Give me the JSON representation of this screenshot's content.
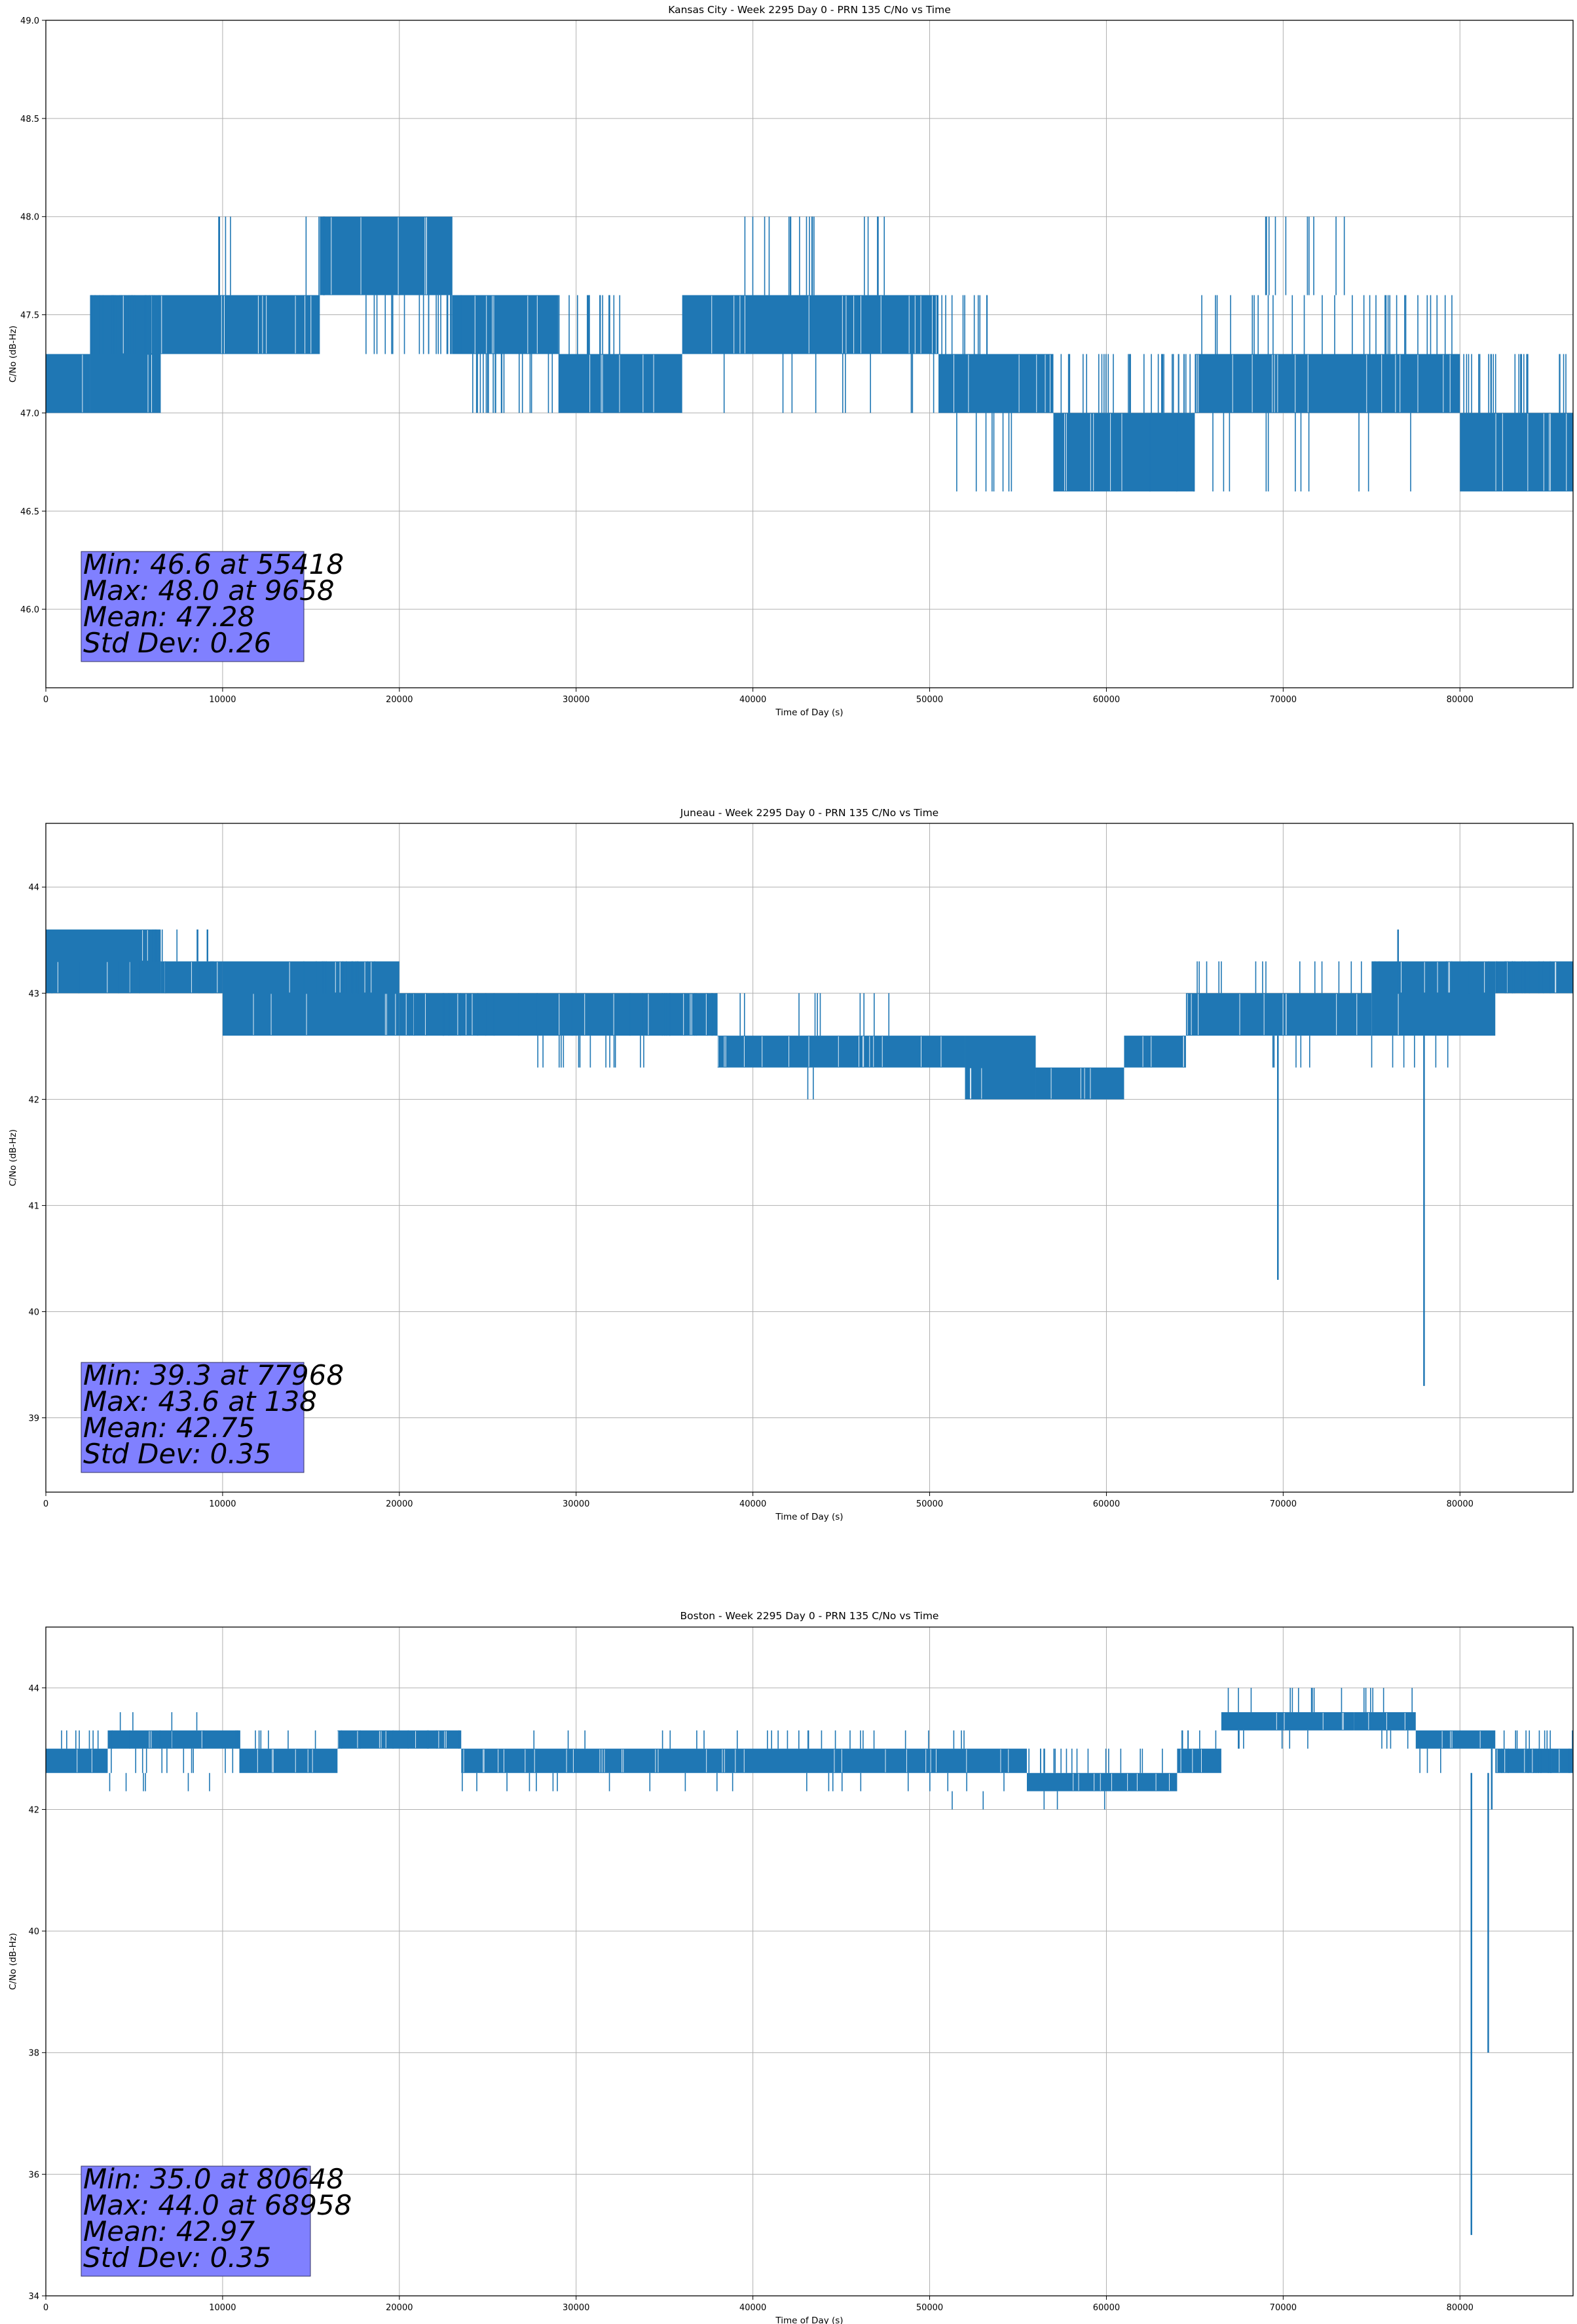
{
  "figure": {
    "line_color": "#1f77b4",
    "stats_box_color": "#8080ff"
  },
  "chart_data": [
    {
      "type": "line",
      "title": "Kansas City - Week 2295 Day 0 - PRN 135 C/No vs Time",
      "xlabel": "Time of Day (s)",
      "ylabel": "C/No (dB-Hz)",
      "xlim": [
        0,
        86400
      ],
      "ylim": [
        45.6,
        49.0
      ],
      "xticks": [
        0,
        10000,
        20000,
        30000,
        40000,
        50000,
        60000,
        70000,
        80000
      ],
      "yticks": [
        "46.0",
        "46.5",
        "47.0",
        "47.5",
        "48.0",
        "48.5",
        "49.0"
      ],
      "grid": true,
      "levels": [
        46.6,
        47.0,
        47.3,
        47.6,
        48.0
      ],
      "bands": [
        {
          "x": [
            0,
            2500
          ],
          "levels": [
            47.0,
            47.3
          ]
        },
        {
          "x": [
            2500,
            6500
          ],
          "levels": [
            47.0,
            47.3,
            47.6
          ]
        },
        {
          "x": [
            6500,
            15500
          ],
          "levels": [
            47.3,
            47.6
          ]
        },
        {
          "x": [
            15500,
            23000
          ],
          "levels": [
            47.6,
            48.0
          ]
        },
        {
          "x": [
            23000,
            29000
          ],
          "levels": [
            47.3,
            47.6
          ]
        },
        {
          "x": [
            29000,
            36000
          ],
          "levels": [
            47.0,
            47.3
          ]
        },
        {
          "x": [
            36000,
            50500
          ],
          "levels": [
            47.3,
            47.6
          ]
        },
        {
          "x": [
            50500,
            57000
          ],
          "levels": [
            47.0,
            47.3
          ]
        },
        {
          "x": [
            57000,
            65000
          ],
          "levels": [
            46.6,
            47.0
          ]
        },
        {
          "x": [
            65000,
            80000
          ],
          "levels": [
            47.0,
            47.3
          ]
        },
        {
          "x": [
            80000,
            86400
          ],
          "levels": [
            46.6,
            47.0
          ]
        }
      ],
      "noise": [
        {
          "x": [
            2500,
            6500
          ],
          "levels": [
            47.3,
            47.6
          ],
          "count": 30
        },
        {
          "x": [
            9600,
            10600
          ],
          "levels": [
            47.6,
            48.0
          ],
          "count": 4
        },
        {
          "x": [
            14500,
            16000
          ],
          "levels": [
            47.6,
            48.0
          ],
          "count": 6
        },
        {
          "x": [
            18000,
            23500
          ],
          "levels": [
            47.3,
            47.6
          ],
          "count": 20
        },
        {
          "x": [
            23500,
            29000
          ],
          "levels": [
            47.0,
            47.3
          ],
          "count": 20
        },
        {
          "x": [
            29000,
            32500
          ],
          "levels": [
            47.3,
            47.6
          ],
          "count": 14
        },
        {
          "x": [
            39500,
            43500
          ],
          "levels": [
            47.6,
            48.0
          ],
          "count": 14
        },
        {
          "x": [
            46000,
            47500
          ],
          "levels": [
            47.6,
            48.0
          ],
          "count": 6
        },
        {
          "x": [
            36000,
            50500
          ],
          "levels": [
            47.0,
            47.3
          ],
          "count": 10
        },
        {
          "x": [
            50500,
            53500
          ],
          "levels": [
            47.3,
            47.6
          ],
          "count": 10
        },
        {
          "x": [
            51000,
            57000
          ],
          "levels": [
            46.6,
            47.0
          ],
          "count": 8
        },
        {
          "x": [
            57000,
            65000
          ],
          "levels": [
            47.0,
            47.3
          ],
          "count": 28
        },
        {
          "x": [
            65000,
            80000
          ],
          "levels": [
            47.3,
            47.6
          ],
          "count": 30
        },
        {
          "x": [
            69000,
            74000
          ],
          "levels": [
            47.6,
            48.0
          ],
          "count": 10
        },
        {
          "x": [
            62000,
            80000
          ],
          "levels": [
            46.6,
            47.0
          ],
          "count": 14
        },
        {
          "x": [
            80000,
            86400
          ],
          "levels": [
            47.0,
            47.3
          ],
          "count": 24
        }
      ],
      "spikes": [],
      "stats": [
        "Min: 46.6 at 55418",
        "Max: 48.0 at 9658",
        "Mean: 47.28",
        "Std Dev: 0.26"
      ]
    },
    {
      "type": "line",
      "title": "Juneau - Week 2295 Day 0 - PRN 135 C/No vs Time",
      "xlabel": "Time of Day (s)",
      "ylabel": "C/No (dB-Hz)",
      "xlim": [
        0,
        86400
      ],
      "ylim": [
        38.3,
        44.6
      ],
      "xticks": [
        0,
        10000,
        20000,
        30000,
        40000,
        50000,
        60000,
        70000,
        80000
      ],
      "yticks": [
        "39",
        "40",
        "41",
        "42",
        "43",
        "44"
      ],
      "grid": true,
      "levels": [
        39.3,
        40.3,
        42.0,
        42.3,
        42.6,
        43.0,
        43.3,
        43.6
      ],
      "bands": [
        {
          "x": [
            0,
            6500
          ],
          "levels": [
            43.0,
            43.3,
            43.6
          ]
        },
        {
          "x": [
            6500,
            10000
          ],
          "levels": [
            43.0,
            43.3
          ]
        },
        {
          "x": [
            10000,
            20000
          ],
          "levels": [
            42.6,
            43.0,
            43.3
          ]
        },
        {
          "x": [
            20000,
            38000
          ],
          "levels": [
            42.6,
            43.0
          ]
        },
        {
          "x": [
            38000,
            52000
          ],
          "levels": [
            42.3,
            42.6
          ]
        },
        {
          "x": [
            52000,
            56000
          ],
          "levels": [
            42.0,
            42.3,
            42.6
          ]
        },
        {
          "x": [
            56000,
            61000
          ],
          "levels": [
            42.0,
            42.3
          ]
        },
        {
          "x": [
            61000,
            64500
          ],
          "levels": [
            42.3,
            42.6
          ]
        },
        {
          "x": [
            64500,
            75000
          ],
          "levels": [
            42.6,
            43.0
          ]
        },
        {
          "x": [
            75000,
            82000
          ],
          "levels": [
            42.6,
            43.0,
            43.3
          ]
        },
        {
          "x": [
            82000,
            86400
          ],
          "levels": [
            43.0,
            43.3
          ]
        }
      ],
      "noise": [
        {
          "x": [
            6000,
            10000
          ],
          "levels": [
            43.3,
            43.6
          ],
          "count": 10
        },
        {
          "x": [
            0,
            10000
          ],
          "levels": [
            43.0,
            43.3
          ],
          "count": 10
        },
        {
          "x": [
            14500,
            21000
          ],
          "levels": [
            43.0,
            43.3
          ],
          "count": 14
        },
        {
          "x": [
            20000,
            38000
          ],
          "levels": [
            42.6,
            43.0
          ],
          "count": 28
        },
        {
          "x": [
            27000,
            34000
          ],
          "levels": [
            42.3,
            42.6
          ],
          "count": 14
        },
        {
          "x": [
            38000,
            52000
          ],
          "levels": [
            42.6,
            43.0
          ],
          "count": 10
        },
        {
          "x": [
            43000,
            44000
          ],
          "levels": [
            42.0,
            42.3
          ],
          "count": 2
        },
        {
          "x": [
            52000,
            64500
          ],
          "levels": [
            42.6,
            42.6
          ],
          "count": 12
        },
        {
          "x": [
            64500,
            75000
          ],
          "levels": [
            43.0,
            43.3
          ],
          "count": 14
        },
        {
          "x": [
            69000,
            71500
          ],
          "levels": [
            42.3,
            42.6
          ],
          "count": 5
        },
        {
          "x": [
            75000,
            80000
          ],
          "levels": [
            42.3,
            42.6
          ],
          "count": 6
        },
        {
          "x": [
            75000,
            86400
          ],
          "levels": [
            43.0,
            43.3
          ],
          "count": 22
        }
      ],
      "spikes": [
        {
          "x": 69700,
          "lo": 40.3,
          "hi": 42.6
        },
        {
          "x": 77968,
          "lo": 39.3,
          "hi": 42.6
        },
        {
          "x": 76500,
          "lo": 43.0,
          "hi": 43.6
        }
      ],
      "stats": [
        "Min: 39.3 at 77968",
        "Max: 43.6 at 138",
        "Mean: 42.75",
        "Std Dev: 0.35"
      ]
    },
    {
      "type": "line",
      "title": "Boston - Week 2295 Day 0 - PRN 135 C/No vs Time",
      "xlabel": "Time of Day (s)",
      "ylabel": "C/No (dB-Hz)",
      "xlim": [
        0,
        86400
      ],
      "ylim": [
        34.0,
        45.0
      ],
      "xticks": [
        0,
        10000,
        20000,
        30000,
        40000,
        50000,
        60000,
        70000,
        80000
      ],
      "yticks": [
        "34",
        "36",
        "38",
        "40",
        "42",
        "44"
      ],
      "grid": true,
      "levels": [
        35.0,
        38.0,
        42.0,
        42.3,
        42.6,
        43.0,
        43.3,
        43.6,
        44.0
      ],
      "bands": [
        {
          "x": [
            0,
            3500
          ],
          "levels": [
            42.6,
            43.0
          ]
        },
        {
          "x": [
            3500,
            11000
          ],
          "levels": [
            43.0,
            43.3
          ]
        },
        {
          "x": [
            11000,
            16500
          ],
          "levels": [
            42.6,
            43.0
          ]
        },
        {
          "x": [
            16500,
            23500
          ],
          "levels": [
            43.0,
            43.3
          ]
        },
        {
          "x": [
            23500,
            55500
          ],
          "levels": [
            42.6,
            43.0
          ]
        },
        {
          "x": [
            55500,
            64000
          ],
          "levels": [
            42.3,
            42.6
          ]
        },
        {
          "x": [
            64000,
            66500
          ],
          "levels": [
            42.6,
            43.0
          ]
        },
        {
          "x": [
            66500,
            74000
          ],
          "levels": [
            43.3,
            43.6
          ]
        },
        {
          "x": [
            74000,
            77500
          ],
          "levels": [
            43.3,
            43.6
          ]
        },
        {
          "x": [
            77500,
            82000
          ],
          "levels": [
            43.0,
            43.3
          ]
        },
        {
          "x": [
            82000,
            86400
          ],
          "levels": [
            42.6,
            43.0
          ]
        }
      ],
      "noise": [
        {
          "x": [
            0,
            11000
          ],
          "levels": [
            42.3,
            42.6
          ],
          "count": 6
        },
        {
          "x": [
            0,
            11000
          ],
          "levels": [
            43.0,
            43.3
          ],
          "count": 14
        },
        {
          "x": [
            3500,
            11000
          ],
          "levels": [
            42.6,
            43.0
          ],
          "count": 12
        },
        {
          "x": [
            4000,
            9000
          ],
          "levels": [
            43.3,
            43.6
          ],
          "count": 4
        },
        {
          "x": [
            11000,
            23500
          ],
          "levels": [
            43.0,
            43.3
          ],
          "count": 14
        },
        {
          "x": [
            23500,
            55500
          ],
          "levels": [
            42.3,
            42.6
          ],
          "count": 22
        },
        {
          "x": [
            23500,
            55500
          ],
          "levels": [
            43.0,
            43.3
          ],
          "count": 26
        },
        {
          "x": [
            55500,
            64000
          ],
          "levels": [
            42.6,
            43.0
          ],
          "count": 18
        },
        {
          "x": [
            50000,
            62000
          ],
          "levels": [
            42.0,
            42.3
          ],
          "count": 5
        },
        {
          "x": [
            64000,
            66500
          ],
          "levels": [
            43.0,
            43.3
          ],
          "count": 6
        },
        {
          "x": [
            66500,
            77500
          ],
          "levels": [
            43.6,
            44.0
          ],
          "count": 16
        },
        {
          "x": [
            66500,
            77500
          ],
          "levels": [
            43.0,
            43.3
          ],
          "count": 10
        },
        {
          "x": [
            77500,
            86400
          ],
          "levels": [
            42.6,
            43.0
          ],
          "count": 14
        },
        {
          "x": [
            82000,
            86400
          ],
          "levels": [
            43.0,
            43.3
          ],
          "count": 10
        }
      ],
      "spikes": [
        {
          "x": 80648,
          "lo": 35.0,
          "hi": 42.6
        },
        {
          "x": 81600,
          "lo": 38.0,
          "hi": 42.6
        },
        {
          "x": 81800,
          "lo": 42.0,
          "hi": 43.0
        }
      ],
      "stats": [
        "Min: 35.0 at 80648",
        "Max: 44.0 at 68958",
        "Mean: 42.97",
        "Std Dev: 0.35"
      ]
    }
  ]
}
